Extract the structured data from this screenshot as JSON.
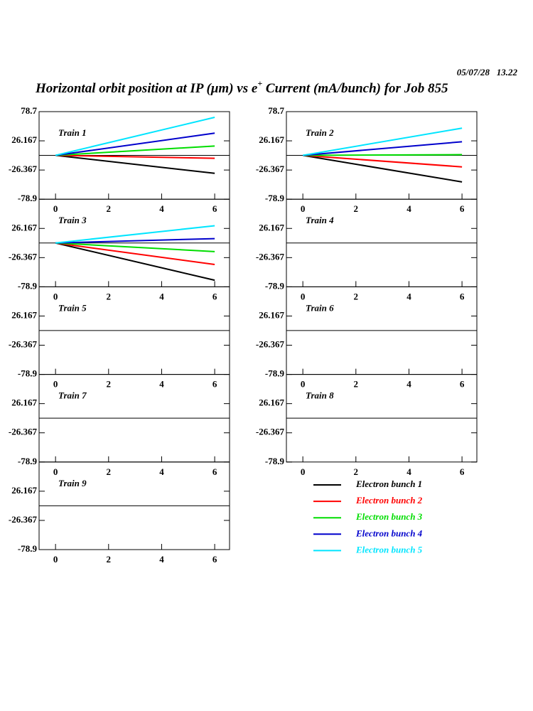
{
  "timestamp": "05/07/28   13.22",
  "title": {
    "start": "Horizontal orbit position at IP (μm) vs e",
    "superscript": "+",
    "end": " Current (mA/bunch) for Job 855"
  },
  "chart_data": [
    {
      "type": "line",
      "label": "Train 1",
      "x": [
        0,
        6
      ],
      "xlim": [
        -0.62,
        6.56
      ],
      "xticks": [
        0,
        2,
        4,
        6
      ],
      "ylim": [
        -78.9,
        78.7
      ],
      "yticks": [
        -78.9,
        -26.367,
        26.167,
        78.7
      ],
      "zero_line": true,
      "series": [
        {
          "name": "Electron bunch 1",
          "color": "#000000",
          "values": [
            0,
            -32.3
          ]
        },
        {
          "name": "Electron bunch 2",
          "color": "#ff0000",
          "values": [
            0,
            -5.2
          ]
        },
        {
          "name": "Electron bunch 3",
          "color": "#00dd00",
          "values": [
            0,
            16.8
          ]
        },
        {
          "name": "Electron bunch 4",
          "color": "#0000cc",
          "values": [
            0,
            40
          ]
        },
        {
          "name": "Electron bunch 5",
          "color": "#00e5ff",
          "values": [
            0,
            68.5
          ]
        }
      ]
    },
    {
      "type": "line",
      "label": "Train 2",
      "x": [
        0,
        6
      ],
      "xlim": [
        -0.62,
        6.56
      ],
      "xticks": [
        0,
        2,
        4,
        6
      ],
      "ylim": [
        -78.9,
        78.7
      ],
      "yticks": [
        -78.9,
        -26.367,
        26.167,
        78.7
      ],
      "zero_line": true,
      "series": [
        {
          "name": "Electron bunch 1",
          "color": "#000000",
          "values": [
            0,
            -47.8
          ]
        },
        {
          "name": "Electron bunch 2",
          "color": "#ff0000",
          "values": [
            0,
            -20.7
          ]
        },
        {
          "name": "Electron bunch 3",
          "color": "#00dd00",
          "values": [
            0,
            1.3
          ]
        },
        {
          "name": "Electron bunch 4",
          "color": "#0000cc",
          "values": [
            0,
            24.5
          ]
        },
        {
          "name": "Electron bunch 5",
          "color": "#00e5ff",
          "values": [
            0,
            49
          ]
        }
      ]
    },
    {
      "type": "line",
      "label": "Train 3",
      "x": [
        0,
        6
      ],
      "xlim": [
        -0.62,
        6.56
      ],
      "xticks": [
        0,
        2,
        4,
        6
      ],
      "ylim": [
        -78.9,
        78.7
      ],
      "yticks": [
        -78.9,
        -26.367,
        26.167
      ],
      "zero_line": true,
      "series": [
        {
          "name": "Electron bunch 1",
          "color": "#000000",
          "values": [
            0,
            -67
          ]
        },
        {
          "name": "Electron bunch 2",
          "color": "#ff0000",
          "values": [
            0,
            -38.8
          ]
        },
        {
          "name": "Electron bunch 3",
          "color": "#00dd00",
          "values": [
            0,
            -15.5
          ]
        },
        {
          "name": "Electron bunch 4",
          "color": "#0000cc",
          "values": [
            0,
            7.8
          ]
        },
        {
          "name": "Electron bunch 5",
          "color": "#00e5ff",
          "values": [
            0,
            31
          ]
        }
      ]
    },
    {
      "type": "line",
      "label": "Train 4",
      "xlim": [
        -0.62,
        6.56
      ],
      "xticks": [
        0,
        2,
        4,
        6
      ],
      "ylim": [
        -78.9,
        78.7
      ],
      "yticks": [
        -78.9,
        -26.367,
        26.167
      ],
      "zero_line": true,
      "series": []
    },
    {
      "type": "line",
      "label": "Train 5",
      "xlim": [
        -0.62,
        6.56
      ],
      "xticks": [
        0,
        2,
        4,
        6
      ],
      "ylim": [
        -78.9,
        78.7
      ],
      "yticks": [
        -78.9,
        -26.367,
        26.167
      ],
      "zero_line": true,
      "series": []
    },
    {
      "type": "line",
      "label": "Train 6",
      "xlim": [
        -0.62,
        6.56
      ],
      "xticks": [
        0,
        2,
        4,
        6
      ],
      "ylim": [
        -78.9,
        78.7
      ],
      "yticks": [
        -78.9,
        -26.367,
        26.167
      ],
      "zero_line": true,
      "series": []
    },
    {
      "type": "line",
      "label": "Train 7",
      "xlim": [
        -0.62,
        6.56
      ],
      "xticks": [
        0,
        2,
        4,
        6
      ],
      "ylim": [
        -78.9,
        78.7
      ],
      "yticks": [
        -78.9,
        -26.367,
        26.167
      ],
      "zero_line": true,
      "series": []
    },
    {
      "type": "line",
      "label": "Train 8",
      "xlim": [
        -0.62,
        6.56
      ],
      "xticks": [
        0,
        2,
        4,
        6
      ],
      "ylim": [
        -78.9,
        78.7
      ],
      "yticks": [
        -78.9,
        -26.367,
        26.167
      ],
      "zero_line": true,
      "series": []
    },
    {
      "type": "line",
      "label": "Train 9",
      "xlim": [
        -0.62,
        6.56
      ],
      "xticks": [
        0,
        2,
        4,
        6
      ],
      "ylim": [
        -78.9,
        78.7
      ],
      "yticks": [
        -78.9,
        -26.367,
        26.167
      ],
      "zero_line": true,
      "series": []
    }
  ]
}
